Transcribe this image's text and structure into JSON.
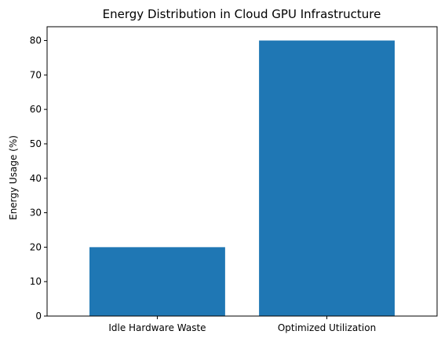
{
  "chart_data": {
    "type": "bar",
    "title": "Energy Distribution in Cloud GPU Infrastructure",
    "xlabel": "",
    "ylabel": "Energy Usage (%)",
    "categories": [
      "Idle Hardware Waste",
      "Optimized Utilization"
    ],
    "values": [
      20,
      80
    ],
    "ylim": [
      0,
      84
    ],
    "yticks": [
      0,
      10,
      20,
      30,
      40,
      50,
      60,
      70,
      80
    ],
    "bar_color": "#1f77b4",
    "grid": false,
    "legend": "none"
  }
}
